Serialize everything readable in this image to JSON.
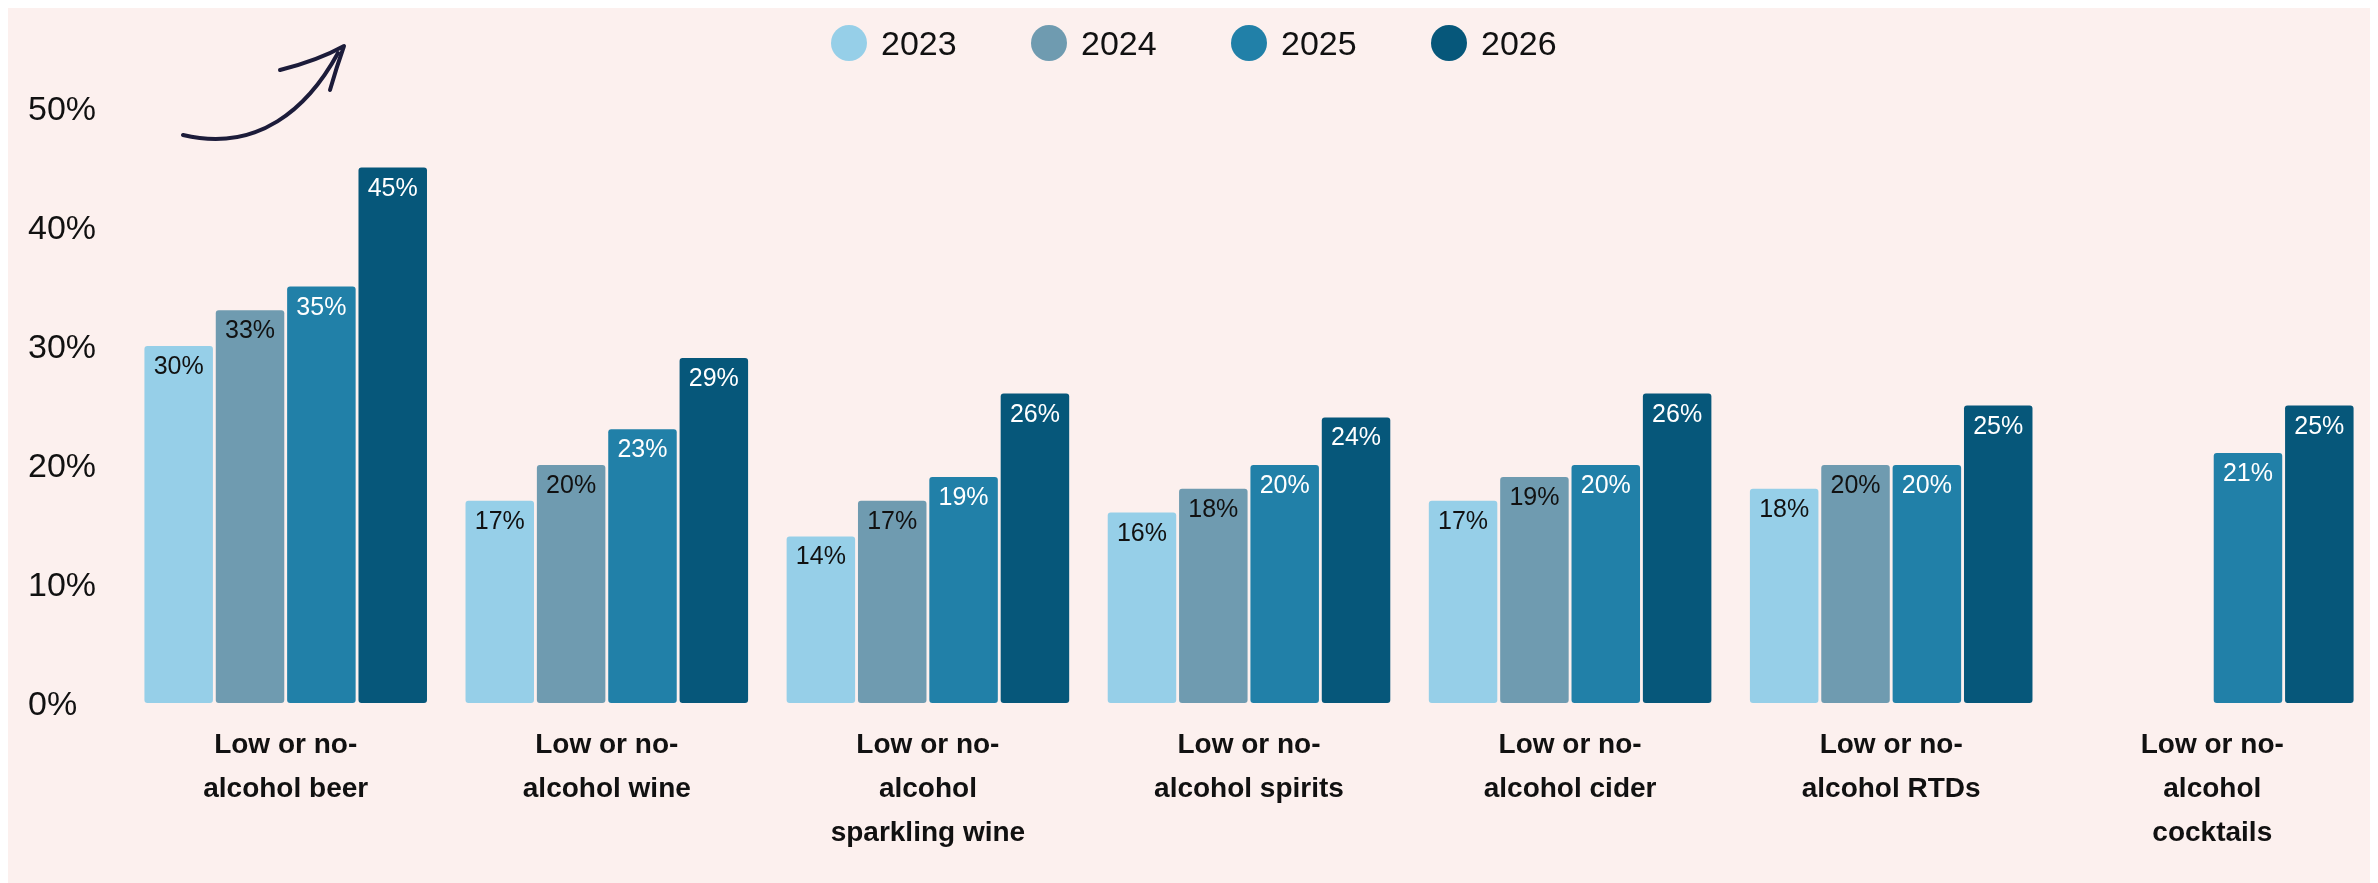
{
  "chart_data": {
    "type": "bar",
    "categories": [
      "Low or no-alcohol beer",
      "Low or no-alcohol wine",
      "Low or no-alcohol sparkling wine",
      "Low or no-alcohol spirits",
      "Low or no-alcohol cider",
      "Low or no-alcohol RTDs",
      "Low or no-alcohol cocktails"
    ],
    "series": [
      {
        "name": "2023",
        "color": "#96cfe8",
        "values": [
          30,
          17,
          14,
          16,
          17,
          18,
          null
        ],
        "value_labels": [
          "30%",
          "17%",
          "14%",
          "16%",
          "17%",
          "18%",
          null
        ]
      },
      {
        "name": "2024",
        "color": "#6f9bb0",
        "values": [
          33,
          20,
          17,
          18,
          19,
          20,
          null
        ],
        "value_labels": [
          "33%",
          "20%",
          "17%",
          "18%",
          "19%",
          "20%",
          null
        ]
      },
      {
        "name": "2025",
        "color": "#2180a8",
        "values": [
          35,
          23,
          19,
          20,
          20,
          20,
          21
        ],
        "value_labels": [
          "35%",
          "23%",
          "19%",
          "20%",
          "20%",
          "20%",
          "21%"
        ]
      },
      {
        "name": "2026",
        "color": "#06577a",
        "values": [
          45,
          29,
          26,
          24,
          26,
          25,
          25
        ],
        "value_labels": [
          "45%",
          "29%",
          "26%",
          "24%",
          "26%",
          "25%",
          "25%"
        ]
      }
    ],
    "ylim": [
      0,
      50
    ],
    "yticks": [
      {
        "value": 0,
        "label": "0%"
      },
      {
        "value": 10,
        "label": "10%"
      },
      {
        "value": 20,
        "label": "20%"
      },
      {
        "value": 30,
        "label": "30%"
      },
      {
        "value": 40,
        "label": "40%"
      },
      {
        "value": 50,
        "label": "50%"
      }
    ],
    "legend": "top",
    "grid": false
  }
}
